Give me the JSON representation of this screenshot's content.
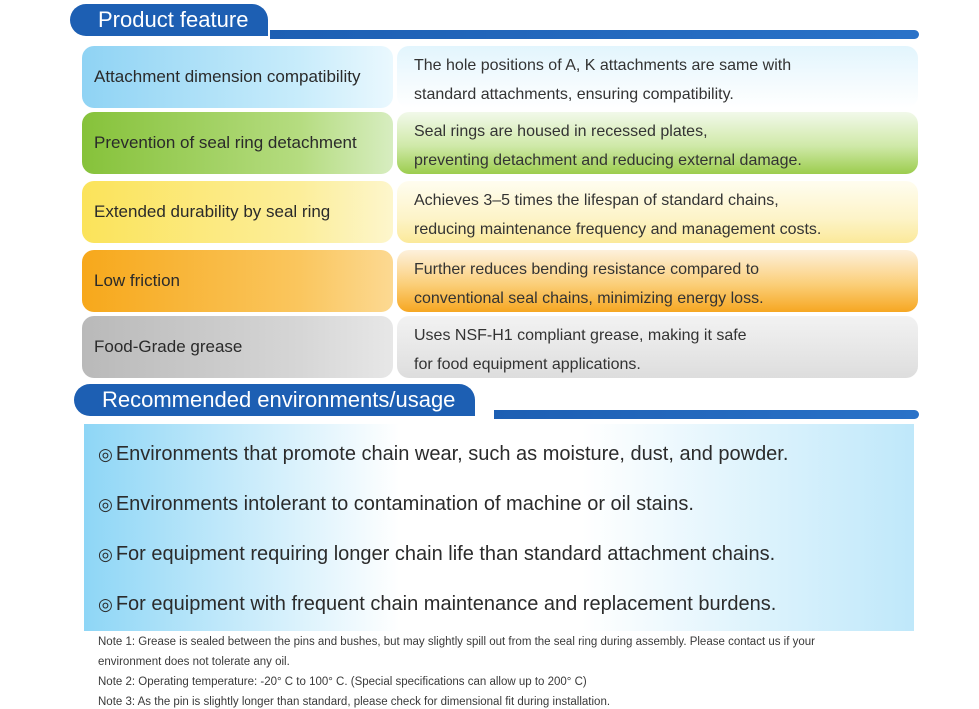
{
  "product_feature": {
    "title": "Product feature",
    "rows": [
      {
        "label": "Attachment dimension compatibility",
        "desc1": "The hole positions of A, K attachments are same with",
        "desc2": "standard attachments, ensuring compatibility."
      },
      {
        "label": "Prevention of seal ring detachment",
        "desc1": "Seal rings are housed in recessed plates,",
        "desc2": "preventing detachment and reducing external damage."
      },
      {
        "label": "Extended durability by seal ring",
        "desc1": "Achieves 3–5 times the lifespan of standard chains,",
        "desc2": "reducing maintenance frequency and management costs."
      },
      {
        "label": "Low friction",
        "desc1": "Further reduces bending resistance compared to",
        "desc2": "conventional seal chains, minimizing energy loss."
      },
      {
        "label": "Food-Grade grease",
        "desc1": "Uses NSF-H1 compliant grease, making it safe",
        "desc2": "for food equipment applications."
      }
    ]
  },
  "recommended": {
    "title": "Recommended environments/usage",
    "bullet": "◎",
    "items": [
      "Environments that promote chain wear, such as moisture, dust, and powder.",
      "Environments intolerant to contamination of machine or oil stains.",
      "For equipment requiring longer chain life than standard attachment chains.",
      "For equipment with frequent chain maintenance and replacement burdens."
    ]
  },
  "notes": [
    "Note 1: Grease is sealed between the pins and bushes, but may slightly spill out from the seal ring during assembly. Please contact us if your",
    "environment does not tolerate any oil.",
    "Note 2: Operating temperature: -20° C to 100° C. (Special specifications can allow up to 200° C)",
    "Note 3: As the pin is slightly longer than standard, please check for dimensional fit during installation."
  ]
}
